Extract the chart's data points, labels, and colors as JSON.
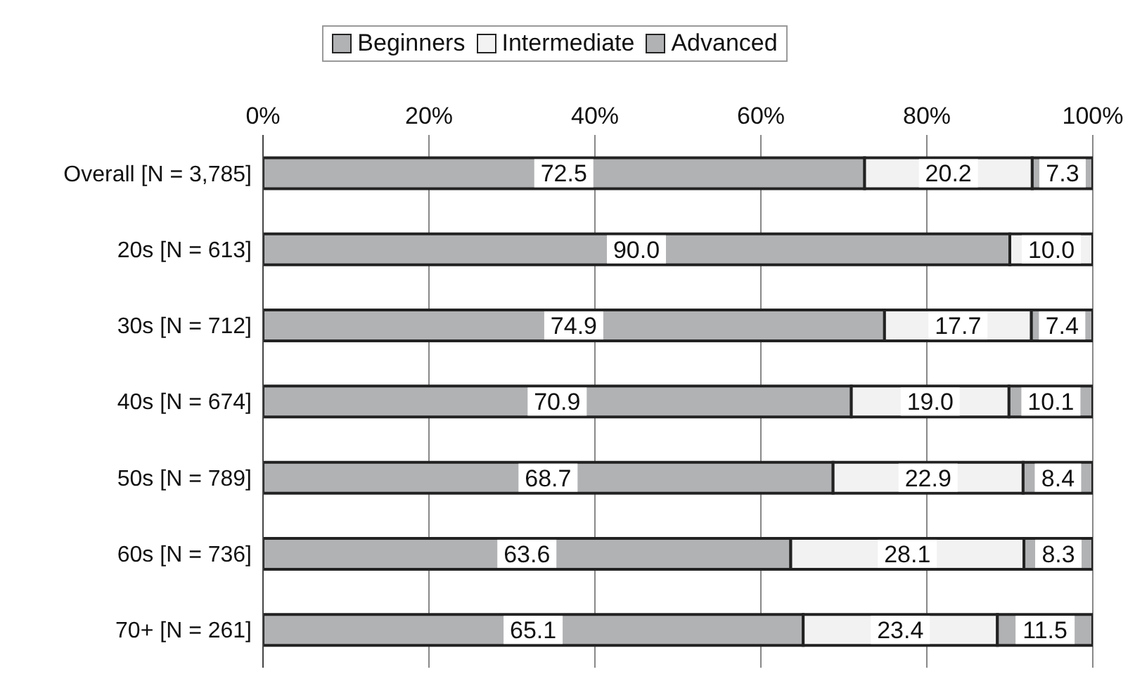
{
  "chart_data": {
    "type": "bar",
    "orientation": "horizontal",
    "stacked": true,
    "categories": [
      "Overall [N = 3,785]",
      "20s [N = 613]",
      "30s [N = 712]",
      "40s [N = 674]",
      "50s [N = 789]",
      "60s [N = 736]",
      "70+ [N = 261]"
    ],
    "series": [
      {
        "name": "Beginners",
        "color": "#b1b2b4",
        "values": [
          72.5,
          90,
          74.9,
          70.9,
          68.7,
          63.6,
          65.1
        ],
        "value_labels": [
          "72.5",
          "90.0",
          "74.9",
          "70.9",
          "68.7",
          "63.6",
          "65.1"
        ]
      },
      {
        "name": "Intermediate",
        "color": "#f2f2f2",
        "values": [
          20.2,
          10,
          17.7,
          19,
          22.9,
          28.1,
          23.4
        ],
        "value_labels": [
          "20.2",
          "10.0",
          "17.7",
          "19.0",
          "22.9",
          "28.1",
          "23.4"
        ]
      },
      {
        "name": "Advanced",
        "color": "#b1b2b4",
        "values": [
          7.3,
          null,
          7.4,
          10.1,
          8.4,
          8.3,
          11.5
        ],
        "value_labels": [
          "7.3",
          null,
          "7.4",
          "10.1",
          "8.4",
          "8.3",
          "11.5"
        ]
      }
    ],
    "xlim": [
      0,
      100
    ],
    "xticks": [
      {
        "value": 0,
        "label": "0%"
      },
      {
        "value": 20,
        "label": "20%"
      },
      {
        "value": 40,
        "label": "40%"
      },
      {
        "value": 60,
        "label": "60%"
      },
      {
        "value": 80,
        "label": "80%"
      },
      {
        "value": 100,
        "label": "100%"
      }
    ],
    "grid": "x",
    "legend": "top"
  }
}
